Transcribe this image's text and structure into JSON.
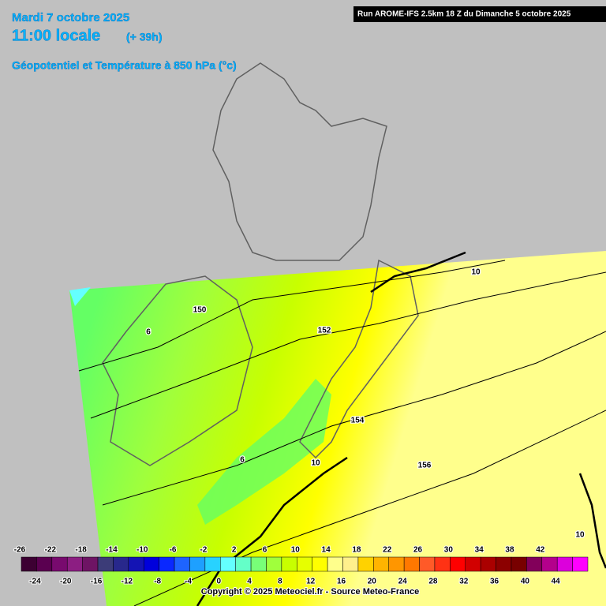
{
  "header": {
    "date": "Mardi 7 octobre 2025",
    "time": "11:00 locale",
    "lead": "(+ 39h)",
    "field": "Géopotentiel et Température à 850 hPa (°c)",
    "run": "Run AROME-IFS 2.5km 18 Z du Dimanche 5 octobre 2025"
  },
  "contour_labels": [
    "10",
    "150",
    "6",
    "152",
    "154",
    "6",
    "10",
    "156",
    "10"
  ],
  "legend": {
    "ticks": [
      -26,
      -24,
      -22,
      -20,
      -18,
      -16,
      -14,
      -12,
      -10,
      -8,
      -6,
      -4,
      -2,
      0,
      2,
      4,
      6,
      8,
      10,
      12,
      14,
      16,
      18,
      20,
      22,
      24,
      26,
      28,
      30,
      32,
      34,
      36,
      38,
      40,
      42,
      44
    ],
    "colors": [
      "#3c0032",
      "#5a0050",
      "#780a6e",
      "#8c1e82",
      "#6e1464",
      "#3c3c78",
      "#28288c",
      "#1414b4",
      "#0000dc",
      "#0a28ff",
      "#1e64ff",
      "#1ea0ff",
      "#28d2ff",
      "#64ffff",
      "#64ffc8",
      "#78ff78",
      "#a0ff3c",
      "#c8ff00",
      "#e6ff00",
      "#ffff00",
      "#ffff8c",
      "#fff08c",
      "#ffd200",
      "#ffb400",
      "#ff9600",
      "#ff7800",
      "#ff5a28",
      "#ff3214",
      "#ff0000",
      "#d20000",
      "#aa0000",
      "#8c0000",
      "#780000",
      "#82005a",
      "#b4008c",
      "#dc00dc",
      "#ff00ff"
    ]
  },
  "footer": {
    "copyright": "Copyright © 2025 Meteociel.fr - Source Meteo-France"
  }
}
